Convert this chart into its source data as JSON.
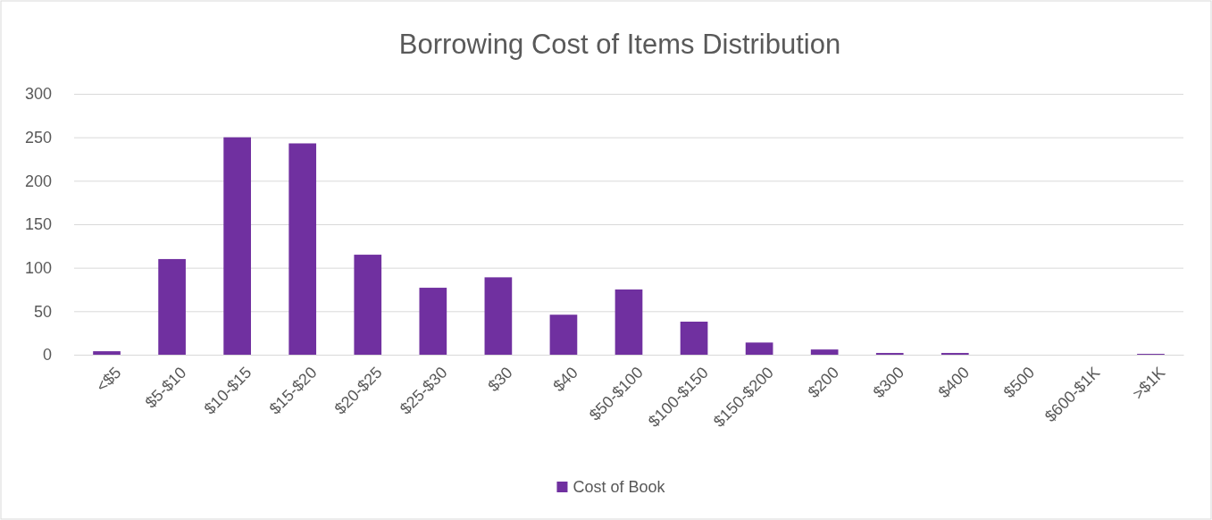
{
  "chart_data": {
    "type": "bar",
    "title": "Borrowing Cost of Items Distribution",
    "categories": [
      "<$5",
      "$5-$10",
      "$10-$15",
      "$15-$20",
      "$20-$25",
      "$25-$30",
      "$30",
      "$40",
      "$50-$100",
      "$100-$150",
      "$150-$200",
      "$200",
      "$300",
      "$400",
      "$500",
      "$600-$1K",
      ">$1K"
    ],
    "series": [
      {
        "name": "Cost of Book",
        "color": "#7030a0",
        "values": [
          4,
          110,
          250,
          243,
          115,
          77,
          89,
          46,
          75,
          38,
          14,
          6,
          2,
          2,
          0,
          0,
          1
        ]
      }
    ],
    "ylim": [
      0,
      300
    ],
    "yticks": [
      0,
      50,
      100,
      150,
      200,
      250,
      300
    ],
    "grid": "y",
    "legend": "bottom"
  }
}
